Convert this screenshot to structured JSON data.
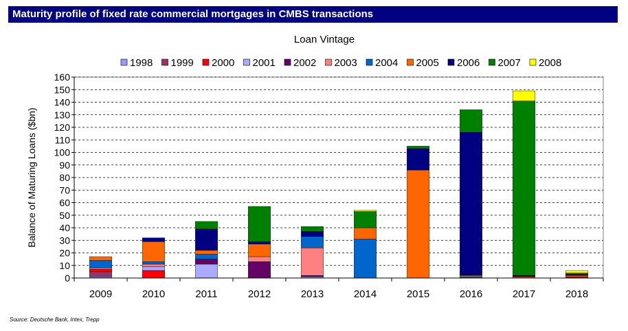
{
  "header": {
    "title": "Maturity profile of fixed rate commercial mortgages in CMBS transactions"
  },
  "source": "Source: Deutsche Bank, Intex, Trepp",
  "chart_data": {
    "type": "bar",
    "stacked": true,
    "title": "Loan Vintage",
    "xlabel": "",
    "ylabel": "Balance of Maturing Loans ($bn)",
    "ylim": [
      0,
      160
    ],
    "ytick_step": 10,
    "grid": true,
    "legend_position": "top",
    "categories": [
      "2009",
      "2010",
      "2011",
      "2012",
      "2013",
      "2014",
      "2015",
      "2016",
      "2017",
      "2018"
    ],
    "series": [
      {
        "name": "1998",
        "color": "#9999ff",
        "values": [
          1,
          0,
          0,
          0,
          0,
          0,
          0,
          0,
          0,
          0
        ]
      },
      {
        "name": "1999",
        "color": "#993366",
        "values": [
          4,
          0,
          0,
          0,
          0,
          0,
          0,
          0,
          0,
          0
        ]
      },
      {
        "name": "2000",
        "color": "#ff0000",
        "values": [
          2,
          6,
          0,
          0,
          0,
          0,
          0,
          0,
          0,
          1
        ]
      },
      {
        "name": "2001",
        "color": "#aaaaff",
        "values": [
          0,
          3,
          11,
          0,
          1,
          0,
          0,
          0,
          0,
          0
        ]
      },
      {
        "name": "2002",
        "color": "#660066",
        "values": [
          0,
          0,
          4,
          13,
          1,
          0,
          0,
          0,
          0,
          0
        ]
      },
      {
        "name": "2003",
        "color": "#ff8080",
        "values": [
          1,
          2,
          0,
          4,
          22,
          0,
          0,
          0,
          0,
          0
        ]
      },
      {
        "name": "2004",
        "color": "#0066cc",
        "values": [
          6,
          2,
          4,
          0,
          9,
          31,
          0,
          1,
          0,
          0
        ]
      },
      {
        "name": "2005",
        "color": "#ff6600",
        "values": [
          3,
          16,
          3,
          10,
          0,
          9,
          86,
          1,
          1,
          1
        ]
      },
      {
        "name": "2006",
        "color": "#000080",
        "values": [
          0,
          3,
          17,
          2,
          4,
          0,
          17,
          114,
          1,
          1
        ]
      },
      {
        "name": "2007",
        "color": "#008000",
        "values": [
          0,
          0,
          6,
          28,
          4,
          13,
          2,
          18,
          139,
          1
        ]
      },
      {
        "name": "2008",
        "color": "#ffff00",
        "values": [
          0,
          0,
          0,
          0,
          0,
          1,
          0,
          0,
          8,
          2
        ]
      }
    ]
  }
}
